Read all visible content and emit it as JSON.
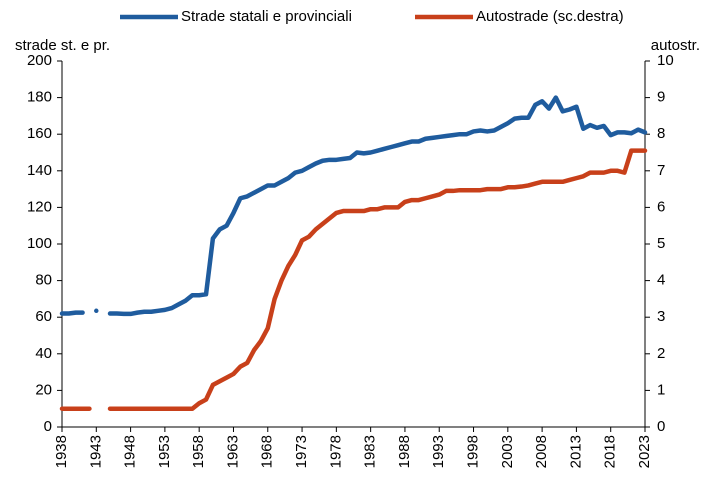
{
  "chart_data": {
    "type": "line",
    "y_label": "strade st. e pr.",
    "y2_label": "autostr.",
    "legend": "top",
    "x": [
      1938,
      1939,
      1940,
      1941,
      1942,
      1943,
      1944,
      1945,
      1946,
      1947,
      1948,
      1949,
      1950,
      1951,
      1952,
      1953,
      1954,
      1955,
      1956,
      1957,
      1958,
      1959,
      1960,
      1961,
      1962,
      1963,
      1964,
      1965,
      1966,
      1967,
      1968,
      1969,
      1970,
      1971,
      1972,
      1973,
      1974,
      1975,
      1976,
      1977,
      1978,
      1979,
      1980,
      1981,
      1982,
      1983,
      1984,
      1985,
      1986,
      1987,
      1988,
      1989,
      1990,
      1991,
      1992,
      1993,
      1994,
      1995,
      1996,
      1997,
      1998,
      1999,
      2000,
      2001,
      2002,
      2003,
      2004,
      2005,
      2006,
      2007,
      2008,
      2009,
      2010,
      2011,
      2012,
      2013,
      2014,
      2015,
      2016,
      2017,
      2018,
      2019,
      2020,
      2021,
      2022,
      2023
    ],
    "xlim": [
      1938,
      2023
    ],
    "xticks": [
      1938,
      1943,
      1948,
      1953,
      1958,
      1963,
      1968,
      1973,
      1978,
      1983,
      1988,
      1993,
      1998,
      2003,
      2008,
      2013,
      2018,
      2023
    ],
    "ylim": [
      0,
      200
    ],
    "yticks": [
      0,
      20,
      40,
      60,
      80,
      100,
      120,
      140,
      160,
      180,
      200
    ],
    "y2lim": [
      0,
      10
    ],
    "y2ticks": [
      0,
      1,
      2,
      3,
      4,
      5,
      6,
      7,
      8,
      9,
      10
    ],
    "series": [
      {
        "name": "Strade statali e provinciali",
        "color": "#1f5c9e",
        "values": [
          62,
          62,
          62.5,
          62.5,
          null,
          63.5,
          null,
          62,
          62,
          61.8,
          61.8,
          62.5,
          63,
          63,
          63.5,
          64,
          65,
          67,
          69,
          72,
          72,
          72.5,
          103,
          108,
          110,
          117,
          125,
          126,
          128,
          130,
          132,
          132,
          134,
          136,
          139,
          140,
          142,
          144,
          145.5,
          146,
          146,
          146.5,
          147,
          150,
          149.5,
          150,
          151,
          152,
          153,
          154,
          155,
          156,
          156,
          157.5,
          158,
          158.5,
          159,
          159.5,
          160,
          160,
          161.5,
          162,
          161.5,
          162,
          164,
          166,
          168.5,
          169,
          169,
          176,
          178,
          174,
          180,
          172.5,
          173.5,
          175,
          163,
          165,
          163.5,
          164.5,
          159.5,
          161,
          161,
          160.5,
          162.5,
          161
        ]
      },
      {
        "name": "Autostrade (sc.destra)",
        "color": "#c8401a",
        "axis": "y2",
        "values": [
          0.5,
          0.5,
          0.5,
          0.5,
          0.5,
          null,
          null,
          0.5,
          0.5,
          0.5,
          0.5,
          0.5,
          0.5,
          0.5,
          0.5,
          0.5,
          0.5,
          0.5,
          0.5,
          0.5,
          0.65,
          0.75,
          1.15,
          1.25,
          1.35,
          1.45,
          1.65,
          1.75,
          2.1,
          2.35,
          2.7,
          3.5,
          4.0,
          4.4,
          4.7,
          5.1,
          5.2,
          5.4,
          5.55,
          5.7,
          5.85,
          5.9,
          5.9,
          5.9,
          5.9,
          5.95,
          5.95,
          6.0,
          6.0,
          6.0,
          6.15,
          6.2,
          6.2,
          6.25,
          6.3,
          6.35,
          6.45,
          6.45,
          6.47,
          6.47,
          6.47,
          6.47,
          6.5,
          6.5,
          6.5,
          6.55,
          6.55,
          6.57,
          6.6,
          6.65,
          6.7,
          6.7,
          6.7,
          6.7,
          6.75,
          6.8,
          6.85,
          6.95,
          6.95,
          6.95,
          7.0,
          7.0,
          6.95,
          7.55,
          7.55,
          7.55
        ]
      }
    ]
  }
}
